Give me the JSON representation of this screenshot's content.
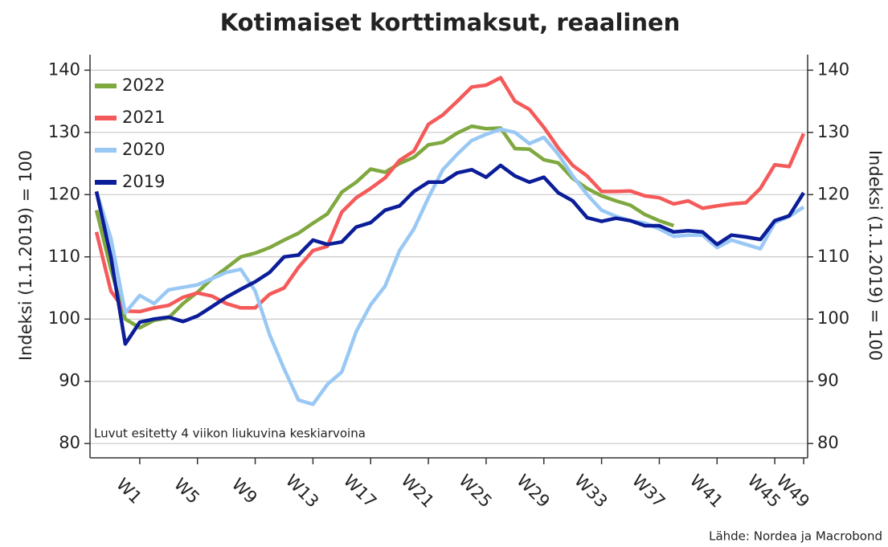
{
  "chart_data": {
    "type": "line",
    "title": "Kotimaiset korttimaksut, reaalinen",
    "ylabel": "Indeksi (1.1.2019) = 100",
    "y2label": "Indeksi (1.1.2019) = 100",
    "annotation": "Luvut esitetty 4 viikon liukuvina keskiarvoina",
    "source": "Lähde: Nordea ja Macrobond",
    "categories": [
      null,
      null,
      null,
      "W1",
      null,
      null,
      null,
      "W5",
      null,
      null,
      null,
      "W9",
      null,
      null,
      null,
      "W13",
      null,
      null,
      null,
      "W17",
      null,
      null,
      null,
      "W21",
      null,
      null,
      null,
      "W25",
      null,
      null,
      null,
      "W29",
      null,
      null,
      null,
      "W33",
      null,
      null,
      null,
      "W37",
      null,
      null,
      null,
      "W41",
      null,
      null,
      null,
      "W45",
      null,
      "W49"
    ],
    "ylim": [
      77.7,
      142.5
    ],
    "yticks": [
      80,
      90,
      100,
      110,
      120,
      130,
      140
    ],
    "y2lim": [
      77.7,
      142.5
    ],
    "y2ticks": [
      80,
      90,
      100,
      110,
      120,
      130,
      140
    ],
    "grid": true,
    "legend": "upper left",
    "series": [
      {
        "name": "2022",
        "color": "#7fa83f",
        "values": [
          117.5,
          108,
          100,
          98.6,
          99.8,
          100.2,
          102.5,
          104.3,
          106.5,
          108.2,
          110,
          110.6,
          111.5,
          112.7,
          113.8,
          115.4,
          116.9,
          120.4,
          122,
          124.1,
          123.6,
          125,
          126,
          128,
          128.4,
          129.9,
          131,
          130.6,
          130.7,
          127.4,
          127.3,
          125.6,
          125.1,
          122.6,
          121,
          119.8,
          119,
          118.3,
          116.8,
          115.8,
          115,
          null,
          null,
          null,
          null,
          null,
          null,
          null,
          null,
          null
        ]
      },
      {
        "name": "2021",
        "color": "#f55a5a",
        "values": [
          114,
          104.5,
          101.3,
          101.2,
          101.8,
          102.2,
          103.5,
          104.2,
          103.7,
          102.5,
          101.8,
          101.8,
          104,
          105,
          108.3,
          111,
          111.7,
          117.2,
          119.5,
          121,
          122.7,
          125.5,
          127,
          131.3,
          132.8,
          135,
          137.3,
          137.6,
          138.8,
          135,
          133.7,
          130.8,
          127.5,
          124.7,
          123,
          120.5,
          120.5,
          120.6,
          119.8,
          119.5,
          118.5,
          119,
          117.8,
          118.2,
          118.5,
          118.7,
          121,
          124.8,
          124.5,
          129.8
        ]
      },
      {
        "name": "2020",
        "color": "#99c8f5",
        "values": [
          120.5,
          113,
          101,
          103.8,
          102.5,
          104.7,
          105.1,
          105.5,
          106.5,
          107.5,
          108,
          104.5,
          97.5,
          92,
          87,
          86.3,
          89.5,
          91.5,
          98,
          102.3,
          105.3,
          111,
          114.5,
          119.5,
          124,
          126.5,
          128.7,
          129.7,
          130.5,
          130,
          128.2,
          129.2,
          126.5,
          123,
          120,
          117.5,
          116.5,
          115.8,
          115.4,
          114.5,
          113.3,
          113.5,
          113.5,
          111.5,
          112.7,
          112,
          111.3,
          115.5,
          116.5,
          118
        ]
      },
      {
        "name": "2019",
        "color": "#0b1d98",
        "values": [
          120.5,
          110,
          96,
          99.5,
          100,
          100.3,
          99.6,
          100.5,
          102,
          103.5,
          104.8,
          106,
          107.5,
          110,
          110.3,
          112.7,
          112,
          112.4,
          114.8,
          115.5,
          117.5,
          118.2,
          120.5,
          122,
          122,
          123.5,
          124,
          122.8,
          124.7,
          123,
          122,
          122.8,
          120.3,
          119,
          116.3,
          115.7,
          116.2,
          115.8,
          115,
          115,
          114,
          114.2,
          114,
          112,
          113.5,
          113.2,
          112.8,
          115.8,
          116.6,
          120.3
        ]
      }
    ]
  }
}
